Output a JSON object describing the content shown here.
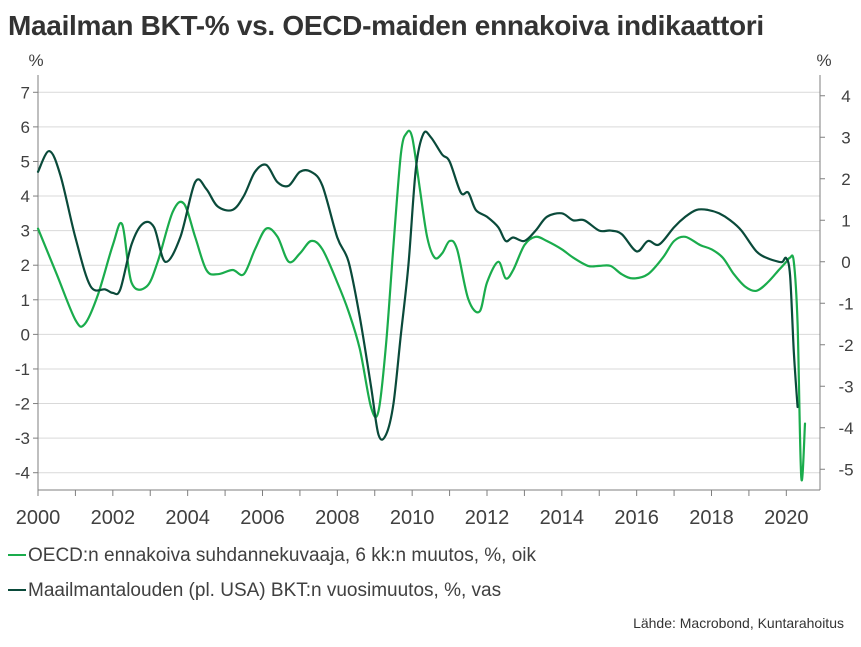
{
  "title": "Maailman BKT-% vs. OECD-maiden ennakoiva indikaattori",
  "source": "Lähde: Macrobond, Kuntarahoitus",
  "colors": {
    "oecd": "#1aac4c",
    "gdp": "#0a4a3a",
    "grid": "#d9d9d9",
    "axis": "#7f7f7f"
  },
  "chart_data": {
    "type": "line",
    "x_ticks": [
      "2000",
      "2002",
      "2004",
      "2006",
      "2008",
      "2010",
      "2012",
      "2014",
      "2016",
      "2018",
      "2020"
    ],
    "xlim": [
      2000.0,
      2020.9
    ],
    "left_axis": {
      "unit": "%",
      "ylim": [
        -4.5,
        7.5
      ],
      "ticks": [
        "7",
        "6",
        "5",
        "4",
        "3",
        "2",
        "1",
        "0",
        "-1",
        "-2",
        "-3",
        "-4"
      ]
    },
    "right_axis": {
      "unit": "%",
      "ylim": [
        -5.5,
        4.5
      ],
      "ticks": [
        "4",
        "3",
        "2",
        "1",
        "0",
        "-1",
        "-2",
        "-3",
        "-4",
        "-5"
      ]
    },
    "series": [
      {
        "name": "OECD:n ennakoiva suhdannekuvaaja, 6 kk:n muutos, %, oik",
        "axis": "right",
        "x": [
          2000.0,
          2000.5,
          2001.0,
          2001.25,
          2001.6,
          2002.0,
          2002.25,
          2002.5,
          2002.9,
          2003.2,
          2003.6,
          2003.9,
          2004.2,
          2004.5,
          2004.8,
          2005.2,
          2005.5,
          2005.8,
          2006.1,
          2006.4,
          2006.7,
          2007.0,
          2007.3,
          2007.6,
          2008.0,
          2008.3,
          2008.6,
          2008.9,
          2009.1,
          2009.3,
          2009.5,
          2009.7,
          2009.85,
          2010.0,
          2010.2,
          2010.4,
          2010.6,
          2010.8,
          2011.0,
          2011.2,
          2011.5,
          2011.8,
          2012.0,
          2012.3,
          2012.5,
          2012.7,
          2013.0,
          2013.3,
          2013.6,
          2014.0,
          2014.3,
          2014.7,
          2015.0,
          2015.3,
          2015.6,
          2015.9,
          2016.3,
          2016.7,
          2017.0,
          2017.3,
          2017.7,
          2018.0,
          2018.3,
          2018.6,
          2018.9,
          2019.2,
          2019.5,
          2019.8,
          2020.0,
          2020.1,
          2020.2,
          2020.3,
          2020.4,
          2020.5
        ],
        "y": [
          0.8,
          -0.3,
          -1.4,
          -1.5,
          -0.8,
          0.4,
          0.9,
          -0.5,
          -0.6,
          0.0,
          1.2,
          1.4,
          0.6,
          -0.2,
          -0.3,
          -0.2,
          -0.3,
          0.3,
          0.8,
          0.6,
          0.0,
          0.2,
          0.5,
          0.3,
          -0.5,
          -1.2,
          -2.1,
          -3.5,
          -3.6,
          -2.0,
          0.4,
          2.6,
          3.1,
          3.0,
          1.8,
          0.6,
          0.1,
          0.2,
          0.5,
          0.3,
          -0.9,
          -1.2,
          -0.5,
          0.0,
          -0.4,
          -0.2,
          0.4,
          0.6,
          0.5,
          0.3,
          0.1,
          -0.1,
          -0.1,
          -0.1,
          -0.3,
          -0.4,
          -0.3,
          0.1,
          0.5,
          0.6,
          0.4,
          0.3,
          0.1,
          -0.3,
          -0.6,
          -0.7,
          -0.5,
          -0.2,
          0.0,
          0.1,
          0.0,
          -1.5,
          -5.2,
          -3.9
        ]
      },
      {
        "name": "Maailmantalouden (pl. USA) BKT:n vuosimuutos, %, vas",
        "axis": "left",
        "x": [
          2000.0,
          2000.3,
          2000.6,
          2001.0,
          2001.4,
          2001.8,
          2002.0,
          2002.2,
          2002.5,
          2002.8,
          2003.1,
          2003.4,
          2003.8,
          2004.2,
          2004.5,
          2004.8,
          2005.2,
          2005.5,
          2005.8,
          2006.1,
          2006.4,
          2006.7,
          2007.0,
          2007.3,
          2007.6,
          2008.0,
          2008.3,
          2008.6,
          2008.9,
          2009.1,
          2009.3,
          2009.5,
          2009.7,
          2009.9,
          2010.1,
          2010.3,
          2010.5,
          2010.8,
          2011.0,
          2011.3,
          2011.5,
          2011.7,
          2012.0,
          2012.3,
          2012.5,
          2012.7,
          2013.0,
          2013.3,
          2013.6,
          2014.0,
          2014.3,
          2014.6,
          2015.0,
          2015.3,
          2015.6,
          2016.0,
          2016.3,
          2016.6,
          2017.0,
          2017.3,
          2017.6,
          2017.9,
          2018.2,
          2018.5,
          2018.8,
          2019.2,
          2019.5,
          2019.8,
          2019.9,
          2020.0,
          2020.1,
          2020.2,
          2020.3
        ],
        "y": [
          4.7,
          5.3,
          4.6,
          2.8,
          1.4,
          1.3,
          1.2,
          1.3,
          2.6,
          3.2,
          3.1,
          2.1,
          2.8,
          4.4,
          4.2,
          3.7,
          3.6,
          4.0,
          4.7,
          4.9,
          4.4,
          4.3,
          4.7,
          4.7,
          4.3,
          2.8,
          2.1,
          0.5,
          -1.5,
          -2.9,
          -2.9,
          -2.0,
          0.0,
          2.0,
          4.8,
          5.8,
          5.7,
          5.2,
          5.0,
          4.1,
          4.1,
          3.6,
          3.4,
          3.1,
          2.7,
          2.8,
          2.7,
          3.0,
          3.4,
          3.5,
          3.3,
          3.3,
          3.0,
          3.0,
          2.9,
          2.4,
          2.7,
          2.6,
          3.1,
          3.4,
          3.6,
          3.6,
          3.5,
          3.3,
          3.0,
          2.4,
          2.2,
          2.1,
          2.1,
          2.2,
          1.7,
          -0.5,
          -2.1
        ]
      }
    ]
  }
}
